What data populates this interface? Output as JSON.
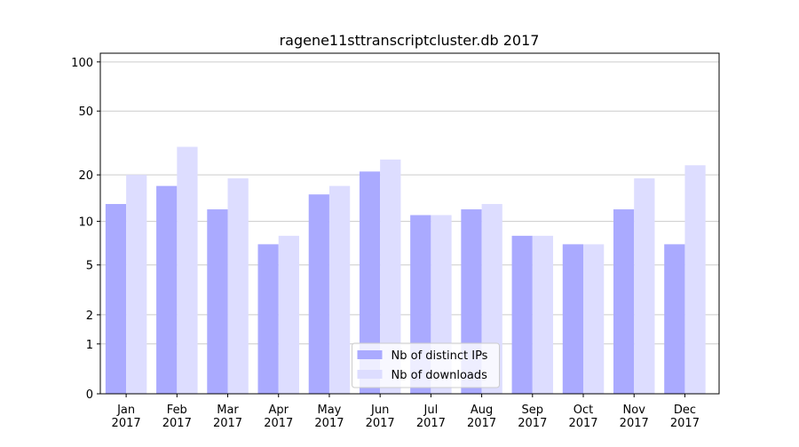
{
  "chart_data": {
    "type": "bar",
    "title": "ragene11sttranscriptcluster.db 2017",
    "categories": [
      "Jan\n2017",
      "Feb\n2017",
      "Mar\n2017",
      "Apr\n2017",
      "May\n2017",
      "Jun\n2017",
      "Jul\n2017",
      "Aug\n2017",
      "Sep\n2017",
      "Oct\n2017",
      "Nov\n2017",
      "Dec\n2017"
    ],
    "series": [
      {
        "name": "Nb of distinct IPs",
        "color": "#aaaaff",
        "values": [
          13,
          17,
          12,
          7,
          15,
          21,
          11,
          12,
          8,
          7,
          12,
          7
        ]
      },
      {
        "name": "Nb of downloads",
        "color": "#ddddff",
        "values": [
          20,
          30,
          19,
          8,
          17,
          25,
          11,
          13,
          8,
          7,
          19,
          23
        ]
      }
    ],
    "scale": "log1p",
    "ylim": [
      0,
      113
    ],
    "yticks": [
      0,
      1,
      2,
      5,
      10,
      20,
      50,
      100
    ],
    "grid": true,
    "legend": "lower center"
  }
}
